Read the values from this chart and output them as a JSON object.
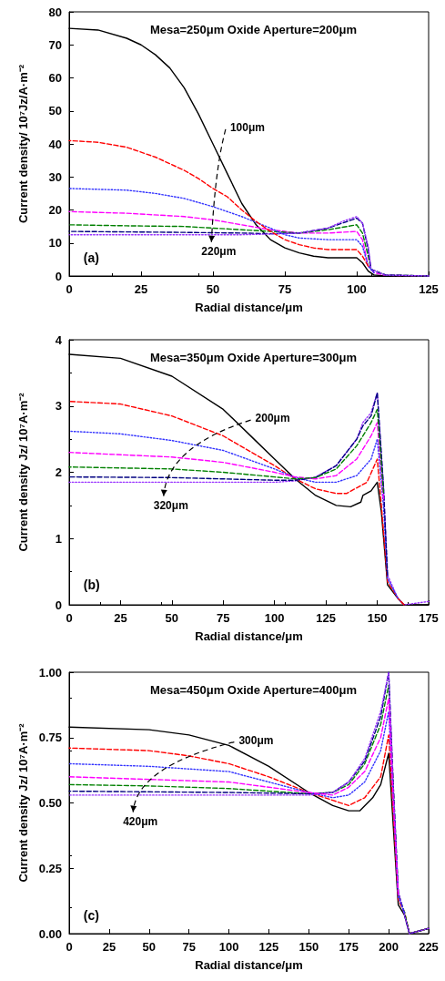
{
  "chart_data": [
    {
      "type": "line",
      "title": "Mesa=250μm Oxide Aperture=200μm",
      "xlabel": "Radial distance/μm",
      "ylabel": "Current density/ 10⁷Jz/A·m⁻²",
      "xlim": [
        0,
        125
      ],
      "xticks": [
        0,
        25,
        50,
        75,
        100,
        125
      ],
      "ylim": [
        0,
        80
      ],
      "yticks": [
        0,
        10,
        20,
        30,
        40,
        50,
        60,
        70,
        80
      ],
      "marker": "none",
      "annotations": [
        "(a)",
        "100μm",
        "220μm"
      ],
      "series": [
        {
          "color": "#000000",
          "line_style": "solid",
          "x": [
            0,
            10,
            20,
            25,
            30,
            35,
            40,
            45,
            50,
            55,
            60,
            65,
            70,
            75,
            80,
            85,
            90,
            95,
            100,
            102,
            104,
            106,
            110,
            125
          ],
          "values": [
            75,
            74.5,
            72,
            70,
            67,
            63,
            57,
            49,
            40,
            31,
            22,
            15.5,
            11,
            8.5,
            7,
            6,
            5.5,
            5.5,
            5.5,
            4,
            1.5,
            0.3,
            0,
            0
          ]
        },
        {
          "color": "#ff0000",
          "line_style": "dashed",
          "x": [
            0,
            10,
            20,
            30,
            40,
            45,
            50,
            55,
            60,
            65,
            70,
            75,
            80,
            85,
            90,
            95,
            100,
            102,
            104
          ],
          "values": [
            41,
            40.5,
            39,
            36,
            32,
            29.5,
            26.5,
            24,
            20,
            16.5,
            13.5,
            11,
            9.5,
            8.5,
            8,
            8,
            8,
            6,
            3
          ]
        },
        {
          "color": "#3333ff",
          "line_style": "dotted",
          "x": [
            0,
            20,
            30,
            40,
            50,
            60,
            70,
            75,
            80,
            90,
            100,
            102,
            104,
            106
          ],
          "values": [
            26.5,
            26,
            25,
            23.5,
            21,
            18,
            14.5,
            12.5,
            11.5,
            11,
            11,
            9,
            3,
            1
          ]
        },
        {
          "color": "#ff00ff",
          "line_style": "dashed",
          "x": [
            0,
            20,
            40,
            50,
            60,
            70,
            80,
            90,
            100,
            102,
            104,
            106,
            110,
            125
          ],
          "values": [
            19.5,
            19,
            18,
            17,
            15.5,
            14,
            13,
            13,
            13.5,
            11,
            3,
            1,
            0.2,
            0
          ]
        },
        {
          "color": "#008000",
          "line_style": "dashed",
          "x": [
            0,
            20,
            40,
            60,
            70,
            80,
            90,
            100,
            102,
            104,
            105,
            110,
            125
          ],
          "values": [
            15.5,
            15.2,
            15,
            14,
            13.5,
            13,
            14,
            15.5,
            13,
            6,
            2,
            0.3,
            0
          ]
        },
        {
          "color": "#000080",
          "line_style": "dashed",
          "x": [
            0,
            40,
            60,
            70,
            80,
            90,
            95,
            100,
            102,
            104,
            105,
            110,
            125
          ],
          "values": [
            13.5,
            13.2,
            13,
            12.8,
            13,
            14.5,
            16,
            17.5,
            16,
            8,
            2,
            0.3,
            0
          ]
        },
        {
          "color": "#9933ff",
          "line_style": "dotted",
          "x": [
            0,
            40,
            60,
            70,
            80,
            90,
            95,
            100,
            102,
            104,
            105,
            110,
            125
          ],
          "values": [
            12.5,
            12.5,
            12.5,
            12.7,
            13,
            14.5,
            16.5,
            18,
            16,
            9,
            2,
            0.3,
            0
          ]
        }
      ]
    },
    {
      "type": "line",
      "title": "Mesa=350μm Oxide Aperture=300μm",
      "xlabel": "Radial distance/μm",
      "ylabel": "Current density Jz/ 10⁷A·m⁻²",
      "xlim": [
        0,
        175
      ],
      "xticks": [
        0,
        25,
        50,
        75,
        100,
        125,
        150,
        175
      ],
      "ylim": [
        0,
        4
      ],
      "yticks": [
        0,
        1,
        2,
        3,
        4
      ],
      "marker": "none",
      "annotations": [
        "(b)",
        "200μm",
        "320μm"
      ],
      "series": [
        {
          "color": "#000000",
          "line_style": "solid",
          "x": [
            0,
            25,
            50,
            75,
            90,
            100,
            110,
            120,
            130,
            137,
            142,
            143,
            147,
            150,
            152,
            155,
            160,
            163,
            175
          ],
          "values": [
            3.78,
            3.72,
            3.45,
            2.95,
            2.5,
            2.2,
            1.9,
            1.65,
            1.5,
            1.48,
            1.55,
            1.65,
            1.72,
            1.85,
            1.4,
            0.3,
            0.1,
            0,
            0
          ]
        },
        {
          "color": "#ff0000",
          "line_style": "dashed",
          "x": [
            0,
            25,
            50,
            75,
            100,
            110,
            120,
            130,
            135,
            145,
            150,
            152,
            155,
            160,
            163
          ],
          "values": [
            3.07,
            3.03,
            2.85,
            2.55,
            2.1,
            1.9,
            1.75,
            1.68,
            1.68,
            1.85,
            2.2,
            1.5,
            0.35,
            0.1,
            0
          ]
        },
        {
          "color": "#3333ff",
          "line_style": "dotted",
          "x": [
            0,
            25,
            50,
            75,
            100,
            110,
            120,
            130,
            140,
            147,
            150,
            153,
            155,
            160
          ],
          "values": [
            2.62,
            2.58,
            2.48,
            2.33,
            2.05,
            1.92,
            1.85,
            1.85,
            1.95,
            2.2,
            2.5,
            1.5,
            0.4,
            0.1
          ]
        },
        {
          "color": "#ff00ff",
          "line_style": "dashed",
          "x": [
            0,
            50,
            75,
            100,
            110,
            120,
            130,
            140,
            147,
            150,
            153
          ],
          "values": [
            2.3,
            2.23,
            2.15,
            2.0,
            1.93,
            1.9,
            1.95,
            2.2,
            2.55,
            2.75,
            1.6
          ]
        },
        {
          "color": "#008000",
          "line_style": "dashed",
          "x": [
            0,
            50,
            75,
            100,
            110,
            120,
            130,
            140,
            147,
            150,
            153
          ],
          "values": [
            2.08,
            2.05,
            2.0,
            1.93,
            1.9,
            1.92,
            2.05,
            2.4,
            2.75,
            2.95,
            1.7
          ]
        },
        {
          "color": "#000080",
          "line_style": "dashed",
          "x": [
            0,
            50,
            100,
            110,
            120,
            130,
            140,
            143,
            147,
            150,
            153,
            155
          ],
          "values": [
            1.93,
            1.92,
            1.88,
            1.88,
            1.92,
            2.1,
            2.5,
            2.7,
            2.85,
            3.2,
            1.8,
            0.45
          ]
        },
        {
          "color": "#9933ff",
          "line_style": "dotted",
          "x": [
            0,
            50,
            100,
            110,
            120,
            130,
            140,
            143,
            147,
            150,
            153,
            155,
            160,
            163,
            175
          ],
          "values": [
            1.85,
            1.85,
            1.85,
            1.87,
            1.93,
            2.1,
            2.5,
            2.75,
            2.9,
            3.2,
            1.8,
            0.45,
            0.1,
            0,
            0.05
          ]
        }
      ]
    },
    {
      "type": "line",
      "title": "Mesa=450μm Oxide Aperture=400μm",
      "xlabel": "Radial distance/μm",
      "ylabel": "Current density Jz/ 10⁷A·m⁻²",
      "xlim": [
        0,
        225
      ],
      "xticks": [
        0,
        25,
        50,
        75,
        100,
        125,
        150,
        175,
        200,
        225
      ],
      "ylim": [
        0,
        1
      ],
      "yticks": [
        {
          "value": 0,
          "label": "0.00"
        },
        {
          "value": 0.25,
          "label": "0.25"
        },
        {
          "value": 0.5,
          "label": "0.50"
        },
        {
          "value": 0.75,
          "label": "0.75"
        },
        {
          "value": 1,
          "label": "1.00"
        }
      ],
      "marker": "none",
      "annotations": [
        "(c)",
        "300μm",
        "420μm"
      ],
      "series": [
        {
          "color": "#000000",
          "line_style": "solid",
          "x": [
            0,
            50,
            75,
            100,
            125,
            150,
            165,
            175,
            182,
            190,
            195,
            200,
            203,
            206,
            210,
            213,
            225
          ],
          "values": [
            0.79,
            0.78,
            0.76,
            0.72,
            0.64,
            0.54,
            0.49,
            0.47,
            0.47,
            0.52,
            0.57,
            0.69,
            0.4,
            0.11,
            0.07,
            0,
            0.02
          ]
        },
        {
          "color": "#ff0000",
          "line_style": "dashed",
          "x": [
            0,
            50,
            75,
            100,
            125,
            150,
            165,
            175,
            185,
            195,
            200,
            203,
            206,
            210,
            213,
            225
          ],
          "values": [
            0.71,
            0.7,
            0.68,
            0.65,
            0.6,
            0.54,
            0.51,
            0.49,
            0.52,
            0.6,
            0.76,
            0.45,
            0.13,
            0.08,
            0,
            0.02
          ]
        },
        {
          "color": "#3333ff",
          "line_style": "dotted",
          "x": [
            0,
            50,
            100,
            125,
            150,
            165,
            175,
            185,
            195,
            200,
            203,
            206,
            210
          ],
          "values": [
            0.65,
            0.64,
            0.62,
            0.58,
            0.54,
            0.52,
            0.53,
            0.58,
            0.7,
            0.85,
            0.5,
            0.14,
            0.08
          ]
        },
        {
          "color": "#ff00ff",
          "line_style": "dashed",
          "x": [
            0,
            50,
            100,
            125,
            150,
            165,
            175,
            185,
            195,
            200,
            203,
            206
          ],
          "values": [
            0.6,
            0.59,
            0.58,
            0.56,
            0.54,
            0.53,
            0.56,
            0.62,
            0.75,
            0.9,
            0.5,
            0.15
          ]
        },
        {
          "color": "#008000",
          "line_style": "dashed",
          "x": [
            0,
            50,
            100,
            125,
            150,
            165,
            175,
            185,
            195,
            200,
            203,
            206,
            210,
            213,
            225
          ],
          "values": [
            0.57,
            0.565,
            0.555,
            0.545,
            0.535,
            0.54,
            0.57,
            0.65,
            0.8,
            0.95,
            0.55,
            0.15,
            0.08,
            0,
            0.02
          ]
        },
        {
          "color": "#000080",
          "line_style": "dashed",
          "x": [
            0,
            100,
            150,
            165,
            175,
            185,
            195,
            200,
            203,
            206,
            213,
            225
          ],
          "values": [
            0.545,
            0.54,
            0.535,
            0.54,
            0.58,
            0.66,
            0.83,
            1.0,
            0.55,
            0.16,
            0,
            0.02
          ]
        },
        {
          "color": "#9933ff",
          "line_style": "dotted",
          "x": [
            0,
            100,
            150,
            165,
            175,
            185,
            195,
            200,
            203,
            206,
            213,
            225
          ],
          "values": [
            0.53,
            0.53,
            0.53,
            0.54,
            0.58,
            0.67,
            0.85,
            1.0,
            0.55,
            0.16,
            0,
            0.02
          ]
        }
      ]
    }
  ]
}
